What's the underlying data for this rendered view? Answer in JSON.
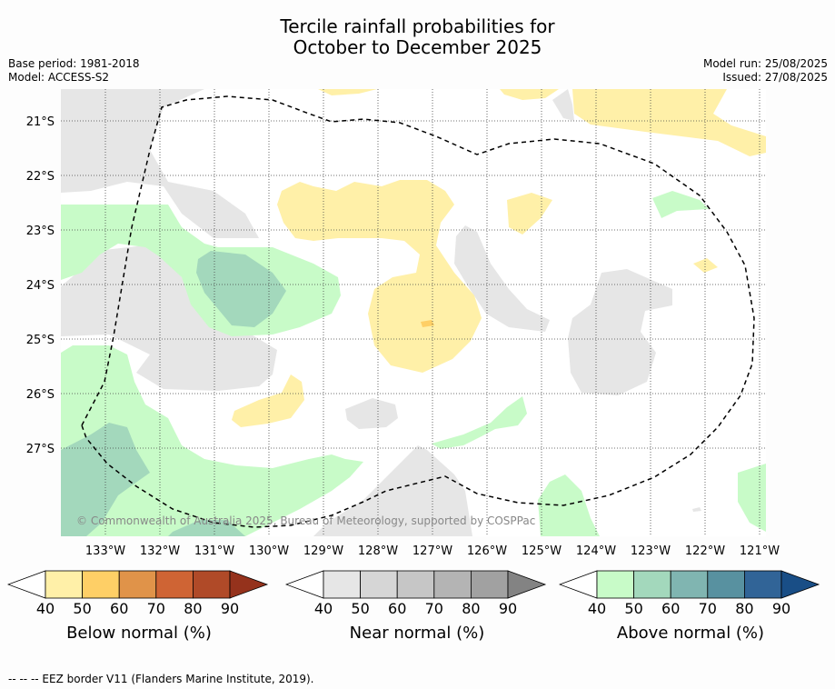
{
  "header": {
    "title_line1": "Tercile rainfall probabilities for",
    "title_line2": "October to December 2025",
    "base_period": "Base period: 1981-2018",
    "model": "Model: ACCESS-S2",
    "model_run": "Model run: 25/08/2025",
    "issued": "Issued: 27/08/2025"
  },
  "map": {
    "lat_labels": [
      "21°S",
      "22°S",
      "23°S",
      "24°S",
      "25°S",
      "26°S",
      "27°S"
    ],
    "lon_labels": [
      "133°W",
      "132°W",
      "131°W",
      "130°W",
      "129°W",
      "128°W",
      "127°W",
      "126°W",
      "125°W",
      "124°W",
      "123°W",
      "122°W",
      "121°W"
    ],
    "copyright": "© Commonwealth of Australia 2025, Bureau of Meteorology, supported by COSPPac"
  },
  "colorbars": [
    {
      "label": "Below normal (%)",
      "ticks": [
        "40",
        "50",
        "60",
        "70",
        "80",
        "90"
      ],
      "colors": [
        "#fff0a8",
        "#fecf66",
        "#e09349",
        "#cf6434",
        "#b04a28",
        "#95321c"
      ]
    },
    {
      "label": "Near normal (%)",
      "ticks": [
        "40",
        "50",
        "60",
        "70",
        "80",
        "90"
      ],
      "colors": [
        "#e6e6e6",
        "#d6d6d6",
        "#c6c6c6",
        "#b4b4b4",
        "#a1a1a1",
        "#838383"
      ]
    },
    {
      "label": "Above normal (%)",
      "ticks": [
        "40",
        "50",
        "60",
        "70",
        "80",
        "90"
      ],
      "colors": [
        "#c8fbc8",
        "#a3d8bc",
        "#80b5b1",
        "#5891a0",
        "#316497",
        "#194e86"
      ]
    }
  ],
  "legend": {
    "eez_text": "--  --  -- EEZ border V11 (Flanders Marine Institute, 2019)."
  },
  "colors": {
    "below_40": "#fff0a8",
    "below_50": "#fecf66",
    "near_40": "#e6e6e6",
    "above_40": "#c8fbc8",
    "above_50": "#a3d8bc"
  }
}
